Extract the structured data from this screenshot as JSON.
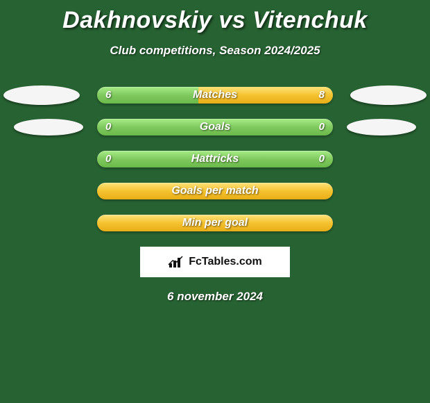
{
  "title": "Dakhnovskiy vs Vitenchuk",
  "subtitle": "Club competitions, Season 2024/2025",
  "colors": {
    "background": "#276232",
    "bar_green_top": "#a7ec86",
    "bar_green_mid": "#7fc95f",
    "bar_green_bot": "#6bb94a",
    "bar_yellow_top": "#ffe27a",
    "bar_yellow_mid": "#f5c330",
    "bar_yellow_bot": "#e8ad17",
    "ellipse": "#f5f5f5",
    "text": "#ffffff"
  },
  "rows": [
    {
      "label": "Matches",
      "left_value": "6",
      "right_value": "8",
      "right_fill_pct": 57,
      "show_ellipses": true,
      "ellipse_size": "large",
      "bar_style": "split"
    },
    {
      "label": "Goals",
      "left_value": "0",
      "right_value": "0",
      "right_fill_pct": 0,
      "show_ellipses": true,
      "ellipse_size": "small",
      "bar_style": "green"
    },
    {
      "label": "Hattricks",
      "left_value": "0",
      "right_value": "0",
      "right_fill_pct": 0,
      "show_ellipses": false,
      "bar_style": "green"
    },
    {
      "label": "Goals per match",
      "left_value": "",
      "right_value": "",
      "right_fill_pct": 100,
      "show_ellipses": false,
      "bar_style": "yellow"
    },
    {
      "label": "Min per goal",
      "left_value": "",
      "right_value": "",
      "right_fill_pct": 100,
      "show_ellipses": false,
      "bar_style": "yellow"
    }
  ],
  "logo_text": "FcTables.com",
  "date": "6 november 2024",
  "typography": {
    "title_fontsize": 34,
    "subtitle_fontsize": 17,
    "bar_label_fontsize": 16,
    "bar_value_fontsize": 15,
    "date_fontsize": 17
  }
}
